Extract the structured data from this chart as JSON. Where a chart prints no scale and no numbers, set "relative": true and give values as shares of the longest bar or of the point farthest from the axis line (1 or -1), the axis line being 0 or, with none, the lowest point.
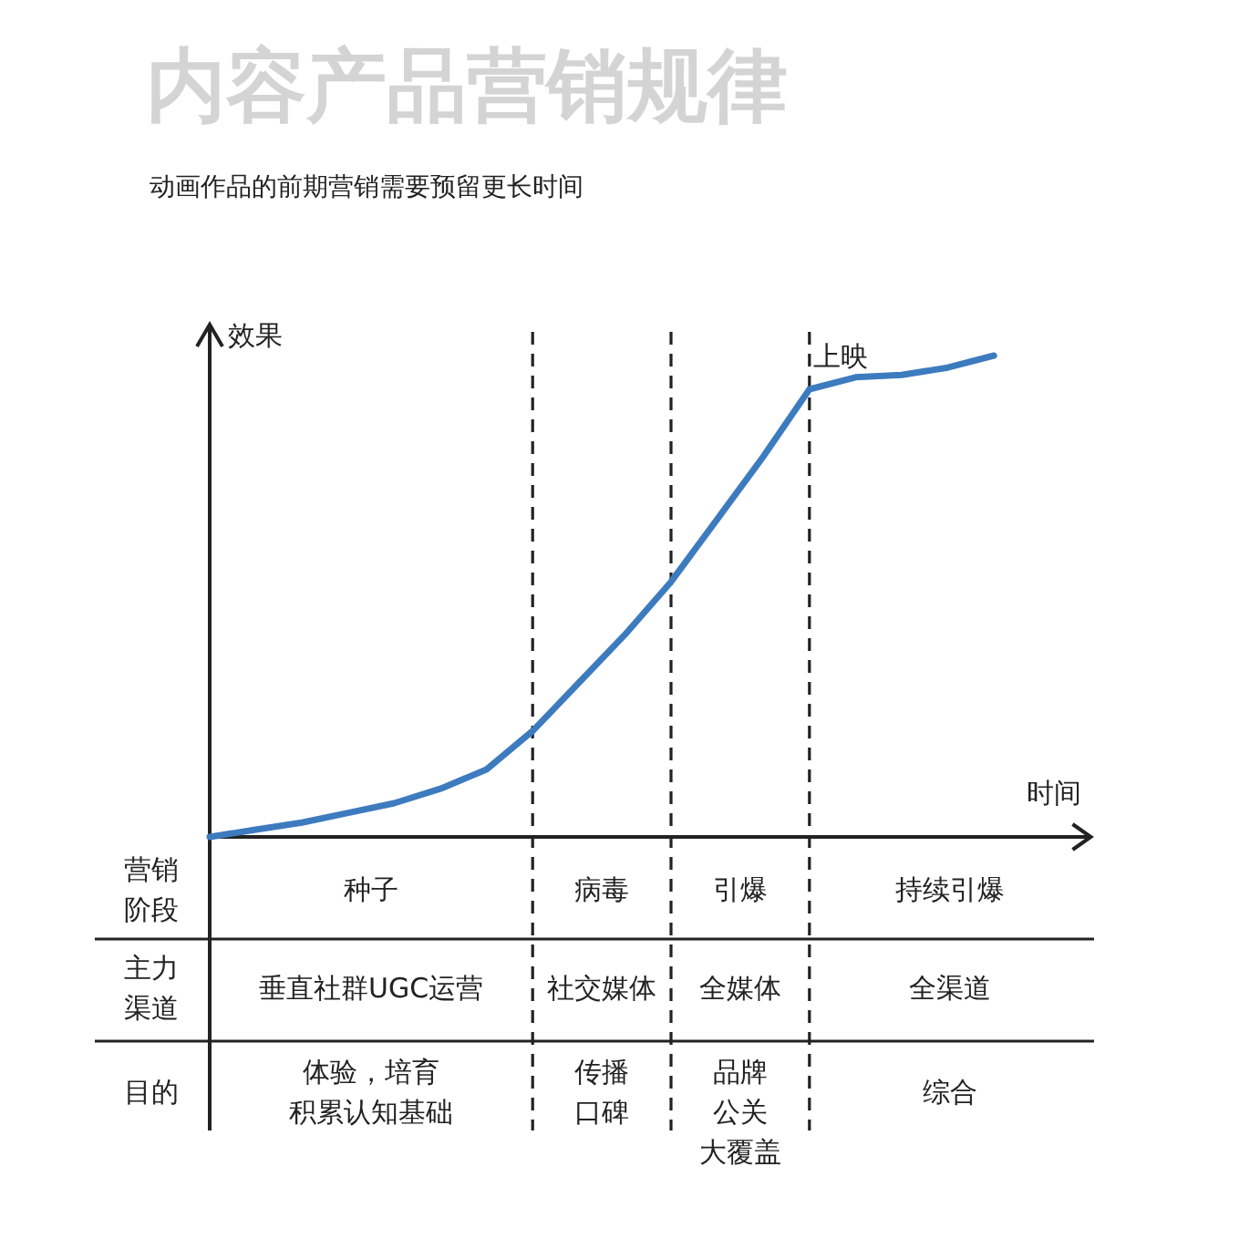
{
  "chart_data": {
    "type": "line",
    "relative": true,
    "title": "内容产品营销规律",
    "subtitle": "动画作品的前期营销需要预留更长时间",
    "xlabel": "时间",
    "ylabel": "效果",
    "categories": [
      null,
      null,
      null,
      null,
      null,
      null,
      null,
      null,
      null,
      null,
      null,
      null,
      null,
      null,
      null,
      null,
      null,
      null
    ],
    "series": [
      {
        "color": "#3d7bbf",
        "values": [
          0,
          0.015,
          0.03,
          0.05,
          0.07,
          0.1,
          0.14,
          0.22,
          0.32,
          0.42,
          0.53,
          0.66,
          0.79,
          0.93,
          0.955,
          0.96,
          0.975,
          1
        ]
      }
    ],
    "grid": "x",
    "annotations": [
      "上映",
      "营销阶段",
      "种子",
      "病毒",
      "引爆",
      "持续引爆",
      "主力渠道",
      "垂直社群UGC运营",
      "社交媒体",
      "全媒体",
      "全渠道",
      "目的",
      "体验，培育积累认知基础",
      "传播口碑",
      "品牌公关大覆盖",
      "综合"
    ]
  }
}
